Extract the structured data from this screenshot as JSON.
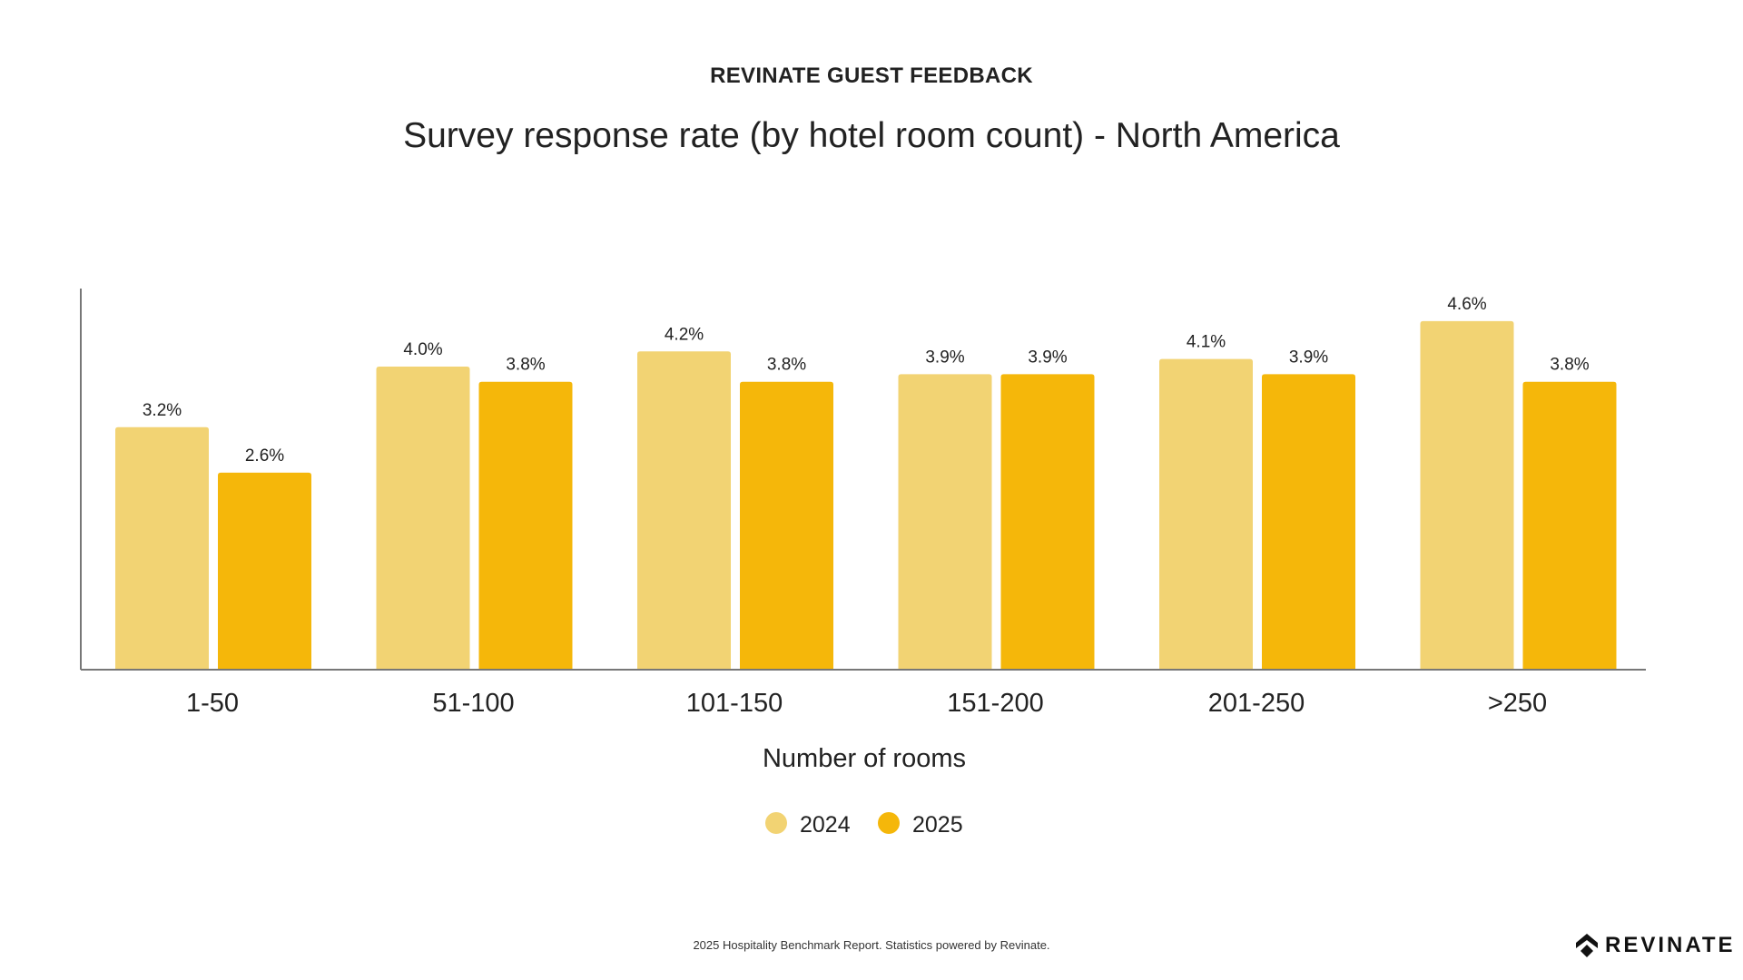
{
  "header": {
    "kicker": "REVINATE GUEST FEEDBACK",
    "title": "Survey response rate (by hotel room count) - North America"
  },
  "chart_data": {
    "type": "bar",
    "title": "Survey response rate (by hotel room count) - North America",
    "xlabel": "Number of rooms",
    "ylabel": "",
    "categories": [
      "1-50",
      "51-100",
      "101-150",
      "151-200",
      "201-250",
      ">250"
    ],
    "series": [
      {
        "name": "2024",
        "color": "#F2D373",
        "values": [
          3.2,
          4.0,
          4.2,
          3.9,
          4.1,
          4.6
        ],
        "labels": [
          "3.2%",
          "4.0%",
          "4.2%",
          "3.9%",
          "4.1%",
          "4.6%"
        ]
      },
      {
        "name": "2025",
        "color": "#F5B70A",
        "values": [
          2.6,
          3.8,
          3.8,
          3.9,
          3.9,
          3.8
        ],
        "labels": [
          "2.6%",
          "3.8%",
          "3.8%",
          "3.9%",
          "3.9%",
          "3.8%"
        ]
      }
    ],
    "ylim": [
      0,
      5
    ],
    "grid": false,
    "legend": "bottom-center"
  },
  "footer": {
    "text": "2025 Hospitality Benchmark Report. Statistics powered by Revinate.",
    "logo": "REVINATE"
  }
}
